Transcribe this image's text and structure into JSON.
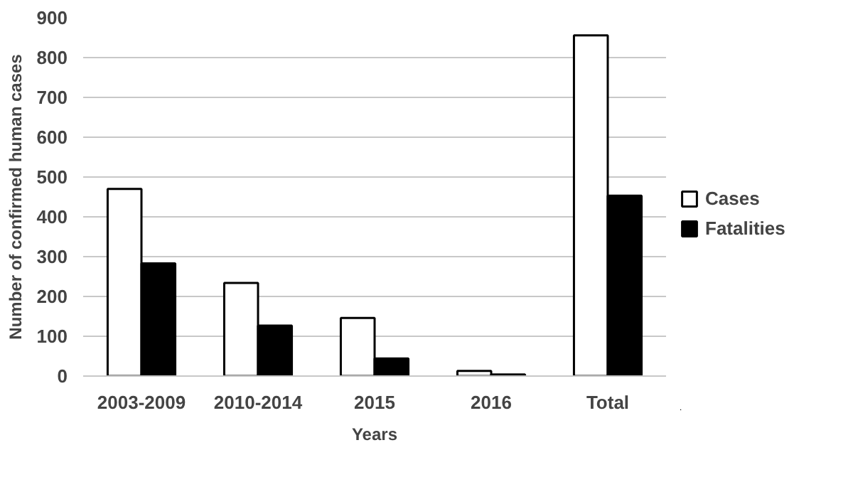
{
  "chart_data": {
    "type": "bar",
    "xlabel": "Years",
    "ylabel": "Number of confirmed human cases",
    "categories": [
      "2003-2009",
      "2010-2014",
      "2015",
      "2016",
      "Total"
    ],
    "series": [
      {
        "name": "Cases",
        "color": "#ffffff",
        "values": [
          470,
          234,
          146,
          13,
          856
        ]
      },
      {
        "name": "Fatalities",
        "color": "#000000",
        "values": [
          283,
          127,
          44,
          4,
          453
        ]
      }
    ],
    "ylim": [
      0,
      900
    ],
    "yticks": [
      0,
      100,
      200,
      300,
      400,
      500,
      600,
      700,
      800,
      900
    ],
    "grid": "y",
    "legend": "right"
  }
}
